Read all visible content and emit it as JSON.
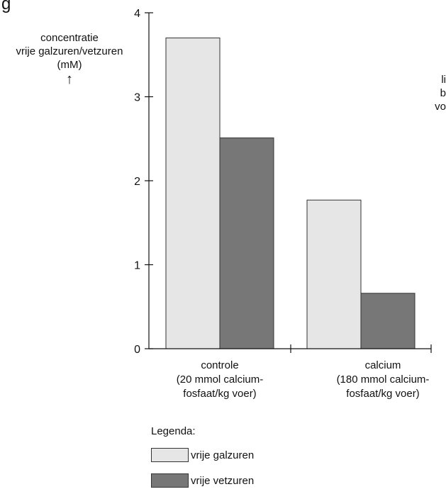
{
  "figure": {
    "top_fragment": "g",
    "right_fragment": [
      "li",
      "b",
      "vo"
    ]
  },
  "chart_data": {
    "type": "bar",
    "title": "",
    "ylabel_lines": [
      "concentratie",
      "vrije galzuren/vetzuren",
      "(mM)"
    ],
    "ylabel_arrow": "↑",
    "ylim": [
      0,
      4
    ],
    "yticks": [
      0,
      1,
      2,
      3,
      4
    ],
    "grid": false,
    "categories": [
      "controle",
      "calcium"
    ],
    "category_labels": [
      [
        "controle",
        "(20 mmol calcium-",
        "fosfaat/kg voer)"
      ],
      [
        "calcium",
        "(180 mmol calcium-",
        "fosfaat/kg voer)"
      ]
    ],
    "series": [
      {
        "name": "vrije galzuren",
        "values": [
          3.7,
          1.77
        ],
        "color": "#e6e6e6"
      },
      {
        "name": "vrije vetzuren",
        "values": [
          2.51,
          0.66
        ],
        "color": "#777777"
      }
    ],
    "legend": {
      "title": "Legenda:",
      "placement": "bottom-left"
    }
  }
}
